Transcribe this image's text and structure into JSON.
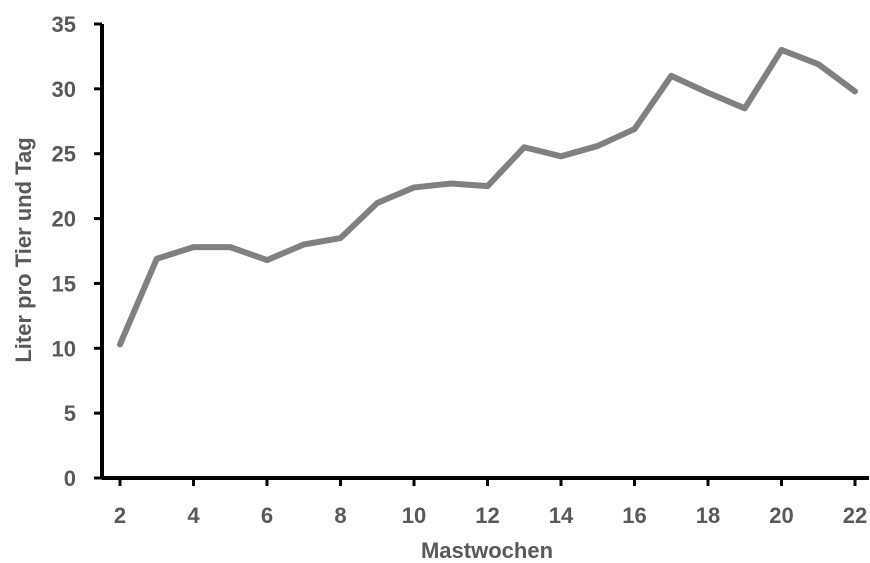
{
  "chart_data": {
    "type": "line",
    "title": "",
    "xlabel": "Mastwochen",
    "ylabel": "Liter pro Tier und Tag",
    "x": [
      2,
      3,
      4,
      5,
      6,
      7,
      8,
      9,
      10,
      11,
      12,
      13,
      14,
      15,
      16,
      17,
      18,
      19,
      20,
      21,
      22
    ],
    "series": [
      {
        "values": [
          10.3,
          16.9,
          17.8,
          17.8,
          16.8,
          18.0,
          18.5,
          21.2,
          22.4,
          22.7,
          22.5,
          25.5,
          24.8,
          25.6,
          26.9,
          31.0,
          29.7,
          28.5,
          33.0,
          31.9,
          29.8
        ]
      }
    ],
    "xticks": [
      "2",
      "4",
      "6",
      "8",
      "10",
      "12",
      "14",
      "16",
      "18",
      "20",
      "22"
    ],
    "yticks": [
      "0",
      "5",
      "10",
      "15",
      "20",
      "25",
      "30",
      "35"
    ],
    "xlim": [
      2,
      22
    ],
    "ylim": [
      0,
      35
    ],
    "grid": false,
    "legend": "none",
    "colors": {
      "line": "#808080",
      "axis": "#000000",
      "text": "#595959"
    }
  }
}
